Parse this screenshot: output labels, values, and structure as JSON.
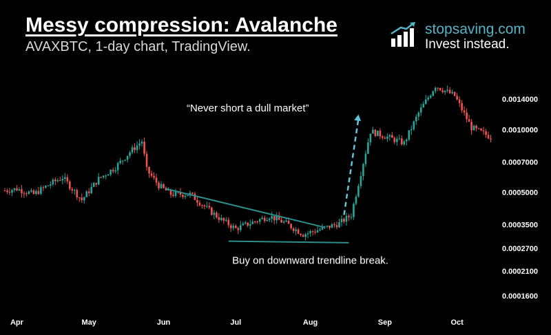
{
  "header": {
    "title": "Messy compression: Avalanche",
    "subtitle": "AVAXBTC, 1-day chart, TradingView."
  },
  "brand": {
    "name": "stopsaving.com",
    "tagline": "Invest instead.",
    "icon": "bar-chart-growth-icon"
  },
  "colors": {
    "up": "#26a69a",
    "down": "#ef5350",
    "trendline": "#2b8f8c",
    "arrow": "#5ec6d8",
    "brand": "#55b4c6"
  },
  "chart_data": {
    "type": "candlestick",
    "symbol": "AVAXBTC",
    "interval": "1-day",
    "y_scale": "log",
    "ylim": [
      0.00013,
      0.0019
    ],
    "y_ticks": [
      "0.0014000",
      "0.0010000",
      "0.0007000",
      "0.0005000",
      "0.0003500",
      "0.0002700",
      "0.0002100",
      "0.0001600"
    ],
    "x_ticks": [
      "Apr",
      "May",
      "Jun",
      "Jul",
      "Aug",
      "Sep",
      "Oct"
    ],
    "price_path": [
      {
        "date": "2021-03-27",
        "price": 0.00051
      },
      {
        "date": "2021-04-01",
        "price": 0.00052
      },
      {
        "date": "2021-04-08",
        "price": 0.00049
      },
      {
        "date": "2021-04-15",
        "price": 0.00055
      },
      {
        "date": "2021-04-20",
        "price": 0.00059
      },
      {
        "date": "2021-04-28",
        "price": 0.00046
      },
      {
        "date": "2021-05-05",
        "price": 0.00058
      },
      {
        "date": "2021-05-12",
        "price": 0.00066
      },
      {
        "date": "2021-05-18",
        "price": 0.00078
      },
      {
        "date": "2021-05-23",
        "price": 0.00088
      },
      {
        "date": "2021-05-25",
        "price": 0.00064
      },
      {
        "date": "2021-05-30",
        "price": 0.00054
      },
      {
        "date": "2021-06-04",
        "price": 0.00049
      },
      {
        "date": "2021-06-12",
        "price": 0.00049
      },
      {
        "date": "2021-06-20",
        "price": 0.00041
      },
      {
        "date": "2021-06-25",
        "price": 0.00037
      },
      {
        "date": "2021-07-01",
        "price": 0.000335
      },
      {
        "date": "2021-07-08",
        "price": 0.00036
      },
      {
        "date": "2021-07-15",
        "price": 0.000385
      },
      {
        "date": "2021-07-22",
        "price": 0.000355
      },
      {
        "date": "2021-07-29",
        "price": 0.000315
      },
      {
        "date": "2021-08-06",
        "price": 0.000335
      },
      {
        "date": "2021-08-13",
        "price": 0.000355
      },
      {
        "date": "2021-08-18",
        "price": 0.00039
      },
      {
        "date": "2021-08-22",
        "price": 0.00062
      },
      {
        "date": "2021-08-26",
        "price": 0.00098
      },
      {
        "date": "2021-09-02",
        "price": 0.00092
      },
      {
        "date": "2021-09-09",
        "price": 0.00086
      },
      {
        "date": "2021-09-15",
        "price": 0.0012
      },
      {
        "date": "2021-09-22",
        "price": 0.00162
      },
      {
        "date": "2021-09-30",
        "price": 0.00145
      },
      {
        "date": "2021-10-07",
        "price": 0.00102
      },
      {
        "date": "2021-10-15",
        "price": 0.00092
      }
    ],
    "annotations": [
      {
        "type": "text",
        "text": "“Never short a dull market”",
        "date": "2021-07-06",
        "price": 0.00122
      },
      {
        "type": "text",
        "text": "Buy on downward trendline break.",
        "date": "2021-08-01",
        "price": 0.000228
      },
      {
        "type": "trendline",
        "name": "descending-resistance",
        "from": {
          "date": "2021-06-02",
          "price": 0.00052
        },
        "to": {
          "date": "2021-08-07",
          "price": 0.00034
        }
      },
      {
        "type": "trendline",
        "name": "support",
        "from": {
          "date": "2021-06-28",
          "price": 0.000292
        },
        "to": {
          "date": "2021-08-17",
          "price": 0.000287
        }
      },
      {
        "type": "arrow",
        "name": "breakout-arrow",
        "from": {
          "date": "2021-08-15",
          "price": 0.00039
        },
        "to": {
          "date": "2021-08-21",
          "price": 0.00118
        }
      }
    ]
  }
}
